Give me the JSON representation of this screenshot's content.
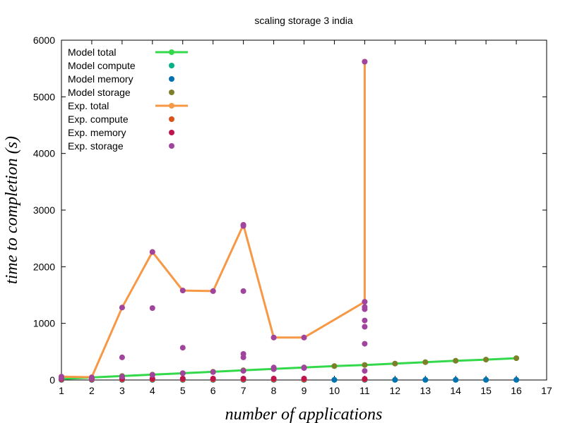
{
  "chart_data": {
    "type": "line",
    "title": "scaling storage 3 india",
    "xlabel": "number of applications",
    "ylabel": "time to completion (s)",
    "xlim": [
      1,
      17
    ],
    "ylim": [
      0,
      6000
    ],
    "x_ticks": [
      "1",
      "2",
      "3",
      "4",
      "5",
      "6",
      "7",
      "8",
      "9",
      "10",
      "11",
      "12",
      "13",
      "14",
      "15",
      "16",
      "17"
    ],
    "y_ticks": [
      "0",
      "1000",
      "2000",
      "3000",
      "4000",
      "5000",
      "6000"
    ],
    "grid": false,
    "legend_position": "top-left",
    "series": [
      {
        "name": "Model total",
        "kind": "line",
        "color": "#33d94b",
        "points": [
          [
            1,
            20
          ],
          [
            2,
            45
          ],
          [
            3,
            70
          ],
          [
            4,
            95
          ],
          [
            5,
            120
          ],
          [
            6,
            145
          ],
          [
            7,
            170
          ],
          [
            8,
            195
          ],
          [
            9,
            220
          ],
          [
            10,
            245
          ],
          [
            11,
            265
          ],
          [
            12,
            290
          ],
          [
            13,
            315
          ],
          [
            14,
            340
          ],
          [
            15,
            360
          ],
          [
            16,
            385
          ]
        ]
      },
      {
        "name": "Model compute",
        "kind": "points",
        "color": "#00b386",
        "points": [
          [
            1,
            2
          ],
          [
            2,
            2
          ],
          [
            3,
            2
          ],
          [
            4,
            2
          ],
          [
            5,
            2
          ],
          [
            6,
            2
          ],
          [
            7,
            2
          ],
          [
            8,
            2
          ],
          [
            9,
            2
          ],
          [
            10,
            2
          ],
          [
            11,
            2
          ],
          [
            12,
            2
          ],
          [
            13,
            2
          ],
          [
            14,
            2
          ],
          [
            15,
            2
          ],
          [
            16,
            2
          ]
        ]
      },
      {
        "name": "Model memory",
        "kind": "points",
        "color": "#0072b2",
        "points": [
          [
            1,
            3
          ],
          [
            2,
            3
          ],
          [
            3,
            3
          ],
          [
            4,
            3
          ],
          [
            5,
            3
          ],
          [
            6,
            3
          ],
          [
            7,
            3
          ],
          [
            8,
            3
          ],
          [
            9,
            3
          ],
          [
            10,
            3
          ],
          [
            11,
            3
          ],
          [
            12,
            3
          ],
          [
            13,
            3
          ],
          [
            14,
            3
          ],
          [
            15,
            3
          ],
          [
            16,
            3
          ]
        ]
      },
      {
        "name": "Model storage",
        "kind": "points",
        "color": "#7f7f2a",
        "points": [
          [
            1,
            20
          ],
          [
            2,
            45
          ],
          [
            3,
            70
          ],
          [
            4,
            95
          ],
          [
            5,
            120
          ],
          [
            6,
            145
          ],
          [
            7,
            170
          ],
          [
            8,
            195
          ],
          [
            9,
            220
          ],
          [
            10,
            245
          ],
          [
            11,
            265
          ],
          [
            12,
            290
          ],
          [
            13,
            315
          ],
          [
            14,
            340
          ],
          [
            15,
            360
          ],
          [
            16,
            385
          ]
        ]
      },
      {
        "name": "Exp.  total",
        "kind": "line",
        "color": "#f79846",
        "points": [
          [
            1,
            60
          ],
          [
            2,
            50
          ],
          [
            3,
            1280
          ],
          [
            4,
            2260
          ],
          [
            5,
            1580
          ],
          [
            6,
            1570
          ],
          [
            7,
            2740
          ],
          [
            8,
            750
          ],
          [
            9,
            750
          ],
          [
            11,
            1380
          ],
          [
            11,
            5620
          ]
        ]
      },
      {
        "name": "Exp.  compute",
        "kind": "points",
        "color": "#d95319",
        "points": [
          [
            1,
            10
          ],
          [
            2,
            10
          ],
          [
            3,
            10
          ],
          [
            4,
            10
          ],
          [
            5,
            10
          ],
          [
            6,
            10
          ],
          [
            7,
            10
          ],
          [
            8,
            10
          ],
          [
            9,
            10
          ],
          [
            11,
            10
          ]
        ]
      },
      {
        "name": "Exp.  memory",
        "kind": "points",
        "color": "#c0144c",
        "points": [
          [
            1,
            20
          ],
          [
            2,
            20
          ],
          [
            3,
            25
          ],
          [
            4,
            25
          ],
          [
            5,
            25
          ],
          [
            6,
            25
          ],
          [
            7,
            25
          ],
          [
            8,
            25
          ],
          [
            9,
            25
          ],
          [
            11,
            20
          ]
        ]
      },
      {
        "name": "Exp.  storage",
        "kind": "points",
        "color": "#a0449d",
        "points": [
          [
            1,
            60
          ],
          [
            1,
            30
          ],
          [
            2,
            45
          ],
          [
            2,
            25
          ],
          [
            3,
            1280
          ],
          [
            3,
            400
          ],
          [
            3,
            60
          ],
          [
            4,
            2260
          ],
          [
            4,
            1270
          ],
          [
            4,
            90
          ],
          [
            5,
            1580
          ],
          [
            5,
            570
          ],
          [
            5,
            120
          ],
          [
            6,
            1570
          ],
          [
            6,
            140
          ],
          [
            7,
            2740
          ],
          [
            7,
            2720
          ],
          [
            7,
            1570
          ],
          [
            7,
            460
          ],
          [
            7,
            400
          ],
          [
            7,
            160
          ],
          [
            8,
            750
          ],
          [
            8,
            220
          ],
          [
            8,
            190
          ],
          [
            9,
            750
          ],
          [
            9,
            220
          ],
          [
            9,
            210
          ],
          [
            11,
            5620
          ],
          [
            11,
            1380
          ],
          [
            11,
            1290
          ],
          [
            11,
            1250
          ],
          [
            11,
            1050
          ],
          [
            11,
            940
          ],
          [
            11,
            640
          ],
          [
            11,
            160
          ]
        ]
      }
    ]
  }
}
